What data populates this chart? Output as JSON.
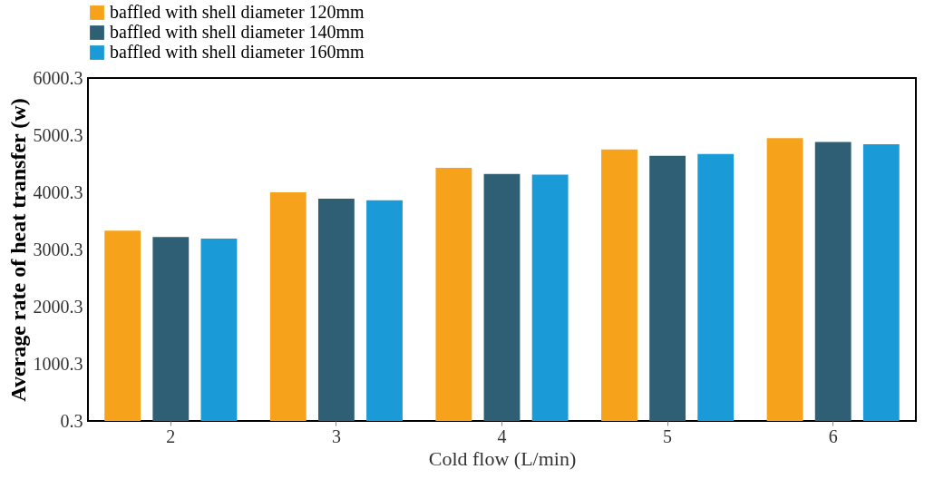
{
  "chart_data": {
    "type": "bar",
    "categories": [
      "2",
      "3",
      "4",
      "5",
      "6"
    ],
    "xlabel": "Cold flow (L/min)",
    "ylabel": "Average  rate of heat transfer (w)",
    "ylim": [
      0.3,
      6000.3
    ],
    "yticks": [
      0.3,
      1000.3,
      2000.3,
      3000.3,
      4000.3,
      5000.3,
      6000.3
    ],
    "legend": "top",
    "grid": false,
    "series": [
      {
        "name": "baffled with shell diameter 120mm",
        "color": "#f7a21b",
        "values": [
          3330,
          4000,
          4430,
          4750,
          4950
        ]
      },
      {
        "name": "baffled with shell diameter 140mm",
        "color": "#2f5f74",
        "values": [
          3220,
          3890,
          4320,
          4640,
          4880
        ]
      },
      {
        "name": "baffled with shell diameter 160mm",
        "color": "#1a9bd7",
        "values": [
          3190,
          3860,
          4310,
          4670,
          4840
        ]
      }
    ]
  }
}
